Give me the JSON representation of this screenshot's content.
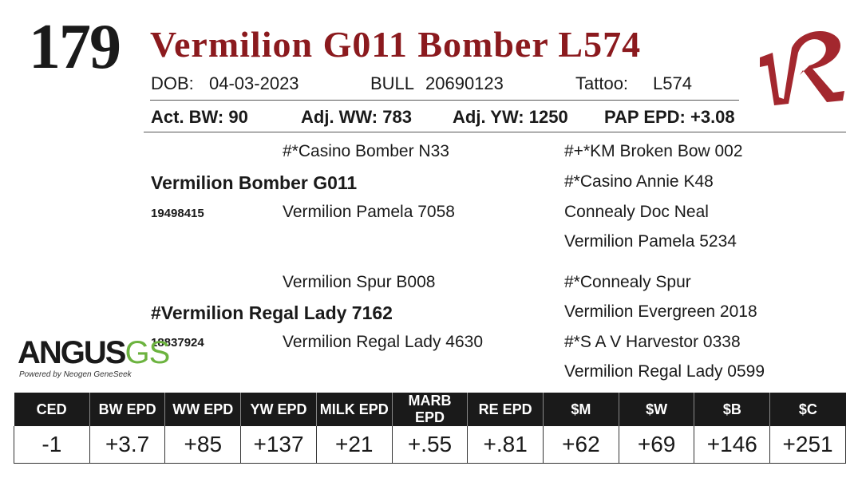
{
  "lot_number": "179",
  "title": "Vermilion G011 Bomber L574",
  "info_row1": {
    "dob_label": "DOB:",
    "dob_value": "04-03-2023",
    "sex_label": "BULL",
    "reg_number": "20690123",
    "tattoo_label": "Tattoo:",
    "tattoo_value": "L574"
  },
  "info_row2": {
    "act_bw": "Act. BW: 90",
    "adj_ww": "Adj. WW: 783",
    "adj_yw": "Adj. YW: 1250",
    "pap_epd": "PAP EPD: +3.08"
  },
  "pedigree": {
    "sire": "Vermilion Bomber G011",
    "sire_reg": "19498415",
    "sire_sire": "#*Casino Bomber N33",
    "sire_dam": "Vermilion Pamela 7058",
    "sss": "#+*KM Broken Bow 002",
    "ssd": "#*Casino Annie K48",
    "sds": "Connealy Doc Neal",
    "sdd": "Vermilion Pamela 5234",
    "dam": "#Vermilion Regal Lady 7162",
    "dam_reg": "18837924",
    "dam_sire": "Vermilion Spur B008",
    "dam_dam": "Vermilion Regal Lady 4630",
    "dss": "#*Connealy Spur",
    "dsd": "Vermilion Evergreen 2018",
    "dds": "#*S A V Harvestor 0338",
    "ddd": "Vermilion Regal Lady 0599"
  },
  "angus_logo": {
    "word": "ANGUS",
    "gs": "GS",
    "powered_by": "Powered by Neogen GeneSeek"
  },
  "vr_logo": {
    "text": "VR",
    "color": "#a3272e"
  },
  "epd_table": {
    "headers": [
      "CED",
      "BW EPD",
      "WW EPD",
      "YW EPD",
      "MILK EPD",
      "MARB EPD",
      "RE EPD",
      "$M",
      "$W",
      "$B",
      "$C"
    ],
    "values": [
      "-1",
      "+3.7",
      "+85",
      "+137",
      "+21",
      "+.55",
      "+.81",
      "+62",
      "+69",
      "+146",
      "+251"
    ]
  },
  "colors": {
    "title": "#8b1a1e",
    "header_bg": "#1a1a1a",
    "angus_gs": "#6cb33f"
  }
}
